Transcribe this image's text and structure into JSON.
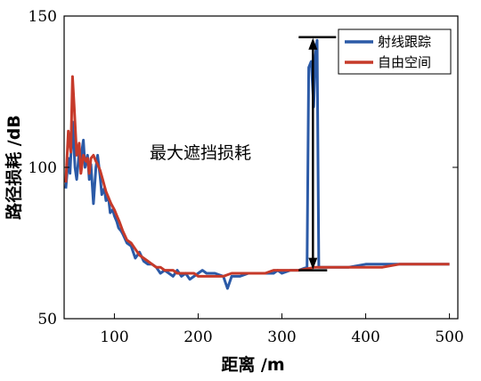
{
  "chart_data": {
    "type": "line",
    "xlabel": "距离 /m",
    "ylabel": "路径损耗 /dB",
    "xlim": [
      40,
      510
    ],
    "ylim": [
      50,
      150
    ],
    "xticks": [
      100,
      200,
      300,
      400,
      500
    ],
    "yticks": [
      50,
      100,
      150
    ],
    "grid": false,
    "legend_position": "top-right",
    "annotation": {
      "text": "最大遮挡损耗",
      "x": 337,
      "y_top": 143,
      "y_bottom": 66
    },
    "series": [
      {
        "name": "射线跟踪",
        "color": "#2b5aa7",
        "x": [
          42,
          45,
          47,
          50,
          53,
          55,
          58,
          60,
          63,
          65,
          68,
          70,
          72,
          75,
          78,
          80,
          83,
          85,
          88,
          90,
          93,
          95,
          98,
          100,
          103,
          105,
          108,
          110,
          115,
          120,
          125,
          130,
          135,
          140,
          145,
          150,
          155,
          160,
          165,
          170,
          175,
          180,
          185,
          190,
          195,
          200,
          205,
          210,
          220,
          230,
          235,
          240,
          250,
          260,
          270,
          280,
          290,
          295,
          300,
          310,
          315,
          320,
          330,
          332,
          335,
          338,
          340,
          342,
          344,
          346,
          350,
          360,
          380,
          400,
          420,
          440,
          460,
          480,
          500
        ],
        "y": [
          93,
          103,
          98,
          115,
          100,
          96,
          105,
          103,
          109,
          100,
          104,
          96,
          101,
          88,
          100,
          104,
          97,
          91,
          93,
          89,
          90,
          85,
          86,
          84,
          82,
          80,
          79,
          78,
          75,
          74,
          70,
          72,
          69,
          68,
          68,
          67,
          65,
          66,
          65,
          64,
          66,
          64,
          65,
          63,
          64,
          65,
          66,
          65,
          65,
          64,
          60,
          64,
          64,
          65,
          65,
          65,
          65,
          66,
          65,
          66,
          66,
          66,
          67,
          133,
          135,
          120,
          137,
          142,
          67,
          67,
          67,
          67,
          67,
          68,
          68,
          68,
          68,
          68,
          68
        ]
      },
      {
        "name": "自由空间",
        "color": "#c63a2a",
        "x": [
          42,
          45,
          48,
          50,
          52,
          55,
          58,
          60,
          63,
          66,
          68,
          70,
          72,
          75,
          78,
          80,
          83,
          86,
          88,
          90,
          93,
          96,
          100,
          103,
          106,
          110,
          115,
          120,
          125,
          130,
          135,
          140,
          145,
          150,
          155,
          160,
          165,
          170,
          175,
          180,
          185,
          190,
          195,
          200,
          210,
          220,
          230,
          240,
          250,
          260,
          270,
          280,
          290,
          300,
          320,
          340,
          360,
          380,
          400,
          420,
          440,
          460,
          480,
          500
        ],
        "y": [
          95,
          112,
          105,
          130,
          120,
          104,
          108,
          98,
          104,
          102,
          103,
          98,
          103,
          104,
          102,
          101,
          99,
          96,
          94,
          92,
          90,
          88,
          86,
          84,
          82,
          79,
          76,
          75,
          73,
          71,
          70,
          69,
          68,
          67,
          67,
          66,
          66,
          66,
          65,
          65,
          65,
          65,
          65,
          64,
          64,
          64,
          64,
          65,
          65,
          65,
          65,
          65,
          66,
          66,
          66,
          67,
          67,
          67,
          67,
          67,
          68,
          68,
          68,
          68
        ]
      }
    ]
  }
}
